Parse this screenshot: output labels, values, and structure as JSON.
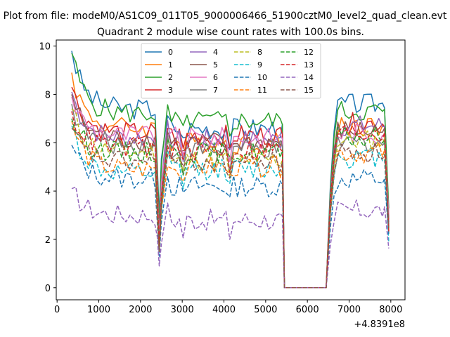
{
  "chart_data": {
    "type": "line",
    "suptitle": "Plot from file: modeM0/AS1C09_011T05_9000006466_51900cztM0_level2_quad_clean.evt",
    "title": "Quadrant 2 module wise count rates with 100.0s bins.",
    "xlabel": "",
    "ylabel": "",
    "x_offset_label": "+4.8391e8",
    "xlim": [
      -20,
      8340
    ],
    "ylim": [
      -0.5,
      10.25
    ],
    "xticks": [
      0,
      1000,
      2000,
      3000,
      4000,
      5000,
      6000,
      7000,
      8000
    ],
    "yticks": [
      0,
      2,
      4,
      6,
      8,
      10
    ],
    "x_segments": [
      [
        350,
        2350
      ],
      [
        2350,
        2500
      ],
      [
        2500,
        5350
      ],
      [
        5350,
        5450
      ],
      [
        5450,
        6450
      ],
      [
        6450,
        7800
      ],
      [
        7800,
        7950
      ]
    ],
    "segment_point_counts": [
      21,
      3,
      30,
      2,
      11,
      15,
      3
    ],
    "legend": {
      "location": "upper-center",
      "columns": 4
    },
    "series": [
      {
        "name": "0",
        "color": "#1f77b4",
        "style": "solid",
        "start": 9.8,
        "level": 7.4,
        "dip": 3.0,
        "level2": 6.6,
        "level3": 7.6
      },
      {
        "name": "1",
        "color": "#ff7f0e",
        "style": "solid",
        "start": 8.9,
        "level": 6.6,
        "dip": 2.4,
        "level2": 6.0,
        "level3": 6.7
      },
      {
        "name": "2",
        "color": "#2ca02c",
        "style": "solid",
        "start": 9.7,
        "level": 7.2,
        "dip": 2.6,
        "level2": 6.9,
        "level3": 7.3
      },
      {
        "name": "3",
        "color": "#d62728",
        "style": "solid",
        "start": 8.3,
        "level": 6.4,
        "dip": 2.2,
        "level2": 6.3,
        "level3": 6.8
      },
      {
        "name": "4",
        "color": "#9467bd",
        "style": "solid",
        "start": 8.1,
        "level": 6.2,
        "dip": 2.1,
        "level2": 6.1,
        "level3": 6.7
      },
      {
        "name": "5",
        "color": "#8c564b",
        "style": "solid",
        "start": 8.0,
        "level": 6.1,
        "dip": 2.0,
        "level2": 6.0,
        "level3": 6.5
      },
      {
        "name": "6",
        "color": "#e377c2",
        "style": "solid",
        "start": 7.9,
        "level": 6.3,
        "dip": 2.0,
        "level2": 6.2,
        "level3": 6.4
      },
      {
        "name": "7",
        "color": "#7f7f7f",
        "style": "solid",
        "start": 7.6,
        "level": 5.9,
        "dip": 1.8,
        "level2": 5.7,
        "level3": 6.0
      },
      {
        "name": "8",
        "color": "#bcbd22",
        "style": "dashed",
        "start": 7.4,
        "level": 5.6,
        "dip": 1.6,
        "level2": 5.3,
        "level3": 6.1
      },
      {
        "name": "9",
        "color": "#17becf",
        "style": "dashed",
        "start": 6.7,
        "level": 4.7,
        "dip": 1.5,
        "level2": 4.9,
        "level3": 5.4
      },
      {
        "name": "10",
        "color": "#1f77b4",
        "style": "dashed",
        "start": 5.9,
        "level": 4.5,
        "dip": 1.3,
        "level2": 4.2,
        "level3": 4.5
      },
      {
        "name": "11",
        "color": "#ff7f0e",
        "style": "dashed",
        "start": 6.9,
        "level": 4.9,
        "dip": 1.5,
        "level2": 5.0,
        "level3": 5.6
      },
      {
        "name": "12",
        "color": "#2ca02c",
        "style": "dashed",
        "start": 7.0,
        "level": 5.6,
        "dip": 1.6,
        "level2": 5.6,
        "level3": 6.2
      },
      {
        "name": "13",
        "color": "#d62728",
        "style": "dashed",
        "start": 7.3,
        "level": 5.8,
        "dip": 1.7,
        "level2": 5.7,
        "level3": 6.4
      },
      {
        "name": "14",
        "color": "#9467bd",
        "style": "dashed",
        "start": 4.1,
        "level": 3.0,
        "dip": 0.9,
        "level2": 2.8,
        "level3": 3.2
      },
      {
        "name": "15",
        "color": "#8c564b",
        "style": "dashed",
        "start": 6.6,
        "level": 5.2,
        "dip": 1.5,
        "level2": 5.2,
        "level3": 5.6
      }
    ]
  }
}
